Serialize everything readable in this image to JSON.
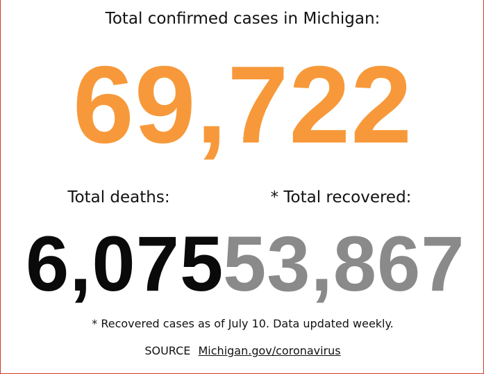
{
  "header": {
    "title": "Total confirmed cases in Michigan:"
  },
  "totals": {
    "confirmed_cases": "69,722",
    "deaths_label": "Total deaths:",
    "deaths": "6,075",
    "recovered_label": "* Total recovered:",
    "recovered": "53,867"
  },
  "footer": {
    "note": "* Recovered cases as of July 10. Data updated weekly.",
    "source_prefix": "SOURCE",
    "source_link": "Michigan.gov/coronavirus"
  },
  "colors": {
    "confirmed": "#f7993a",
    "deaths": "#0a0a0a",
    "recovered": "#8a8a8a",
    "border": "#d33a2c"
  }
}
